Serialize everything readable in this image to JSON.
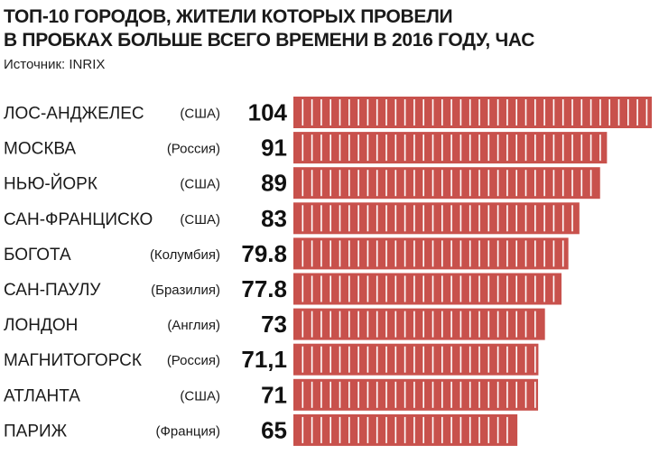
{
  "header": {
    "title_line1": "ТОП-10 ГОРОДОВ, ЖИТЕЛИ КОТОРЫХ ПРОВЕЛИ",
    "title_line2": "В ПРОБКАХ БОЛЬШЕ ВСЕГО ВРЕМЕНИ В 2016 ГОДУ, ЧАС",
    "source": "Источник: INRIX"
  },
  "colors": {
    "bar": "#c8514c",
    "separator": "#ffffff",
    "text": "#1a1a1a"
  },
  "chart_data": {
    "type": "bar",
    "orientation": "horizontal",
    "title": "ТОП-10 ГОРОДОВ, ЖИТЕЛИ КОТОРЫХ ПРОВЕЛИ В ПРОБКАХ БОЛЬШЕ ВСЕГО ВРЕМЕНИ В 2016 ГОДУ, ЧАС",
    "categories": [
      "ЛОС-АНДЖЕЛЕС",
      "МОСКВА",
      "НЬЮ-ЙОРК",
      "САН-ФРАНЦИСКО",
      "БОГОТА",
      "САН-ПАУЛУ",
      "ЛОНДОН",
      "МАГНИТОГОРСК",
      "АТЛАНТА",
      "ПАРИЖ"
    ],
    "countries": [
      "(США)",
      "(Россия)",
      "(США)",
      "(США)",
      "(Колумбия)",
      "(Бразилия)",
      "(Англия)",
      "(Россия)",
      "(США)",
      "(Франция)"
    ],
    "values": [
      104,
      91,
      89,
      83,
      79.8,
      77.8,
      73,
      71.1,
      71,
      65
    ],
    "value_labels": [
      "104",
      "91",
      "89",
      "83",
      "79.8",
      "77.8",
      "73",
      "71,1",
      "71",
      "65"
    ],
    "xlim": [
      0,
      104
    ],
    "grid": false,
    "legend": "none"
  }
}
